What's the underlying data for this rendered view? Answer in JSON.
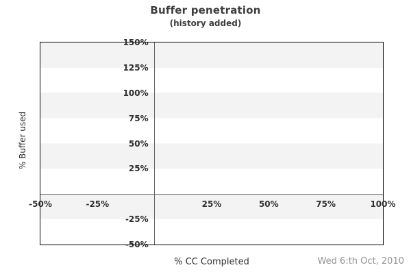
{
  "header": {
    "title": "Buffer penetration",
    "subtitle": "(history added)"
  },
  "footer": {
    "x_axis_title": "% CC Completed",
    "date": "Wed 6:th Oct, 2010"
  },
  "chart_data": {
    "type": "line",
    "title": "Buffer penetration",
    "subtitle": "(history added)",
    "xlabel": "% CC Completed",
    "ylabel": "% Buffer used",
    "xlim": [
      -50,
      100
    ],
    "ylim": [
      -50,
      150
    ],
    "x_ticks": [
      {
        "value": -50,
        "label": "-50%"
      },
      {
        "value": -25,
        "label": "-25%"
      },
      {
        "value": 25,
        "label": "25%"
      },
      {
        "value": 50,
        "label": "50%"
      },
      {
        "value": 75,
        "label": "75%"
      },
      {
        "value": 100,
        "label": "100%"
      }
    ],
    "y_ticks": [
      {
        "value": 150,
        "label": "150%"
      },
      {
        "value": 125,
        "label": "125%"
      },
      {
        "value": 100,
        "label": "100%"
      },
      {
        "value": 75,
        "label": "75%"
      },
      {
        "value": 50,
        "label": "50%"
      },
      {
        "value": 25,
        "label": "25%"
      },
      {
        "value": -25,
        "label": "-25%"
      },
      {
        "value": -50,
        "label": "-50%"
      }
    ],
    "series": [],
    "grid": "alternating horizontal bands every 25%, gray bands at [150..125, 100..75, 50..25, 0..-25]",
    "legend": "none",
    "annotations": [
      "Wed 6:th Oct, 2010"
    ]
  },
  "colors": {
    "background": "#ffffff",
    "band_gray": "#f3f3f3",
    "plot_border": "#000000",
    "zero_line": "#606060",
    "text": "#2e2e2e",
    "title_text": "#3d3d3d",
    "date_text": "#929292"
  }
}
